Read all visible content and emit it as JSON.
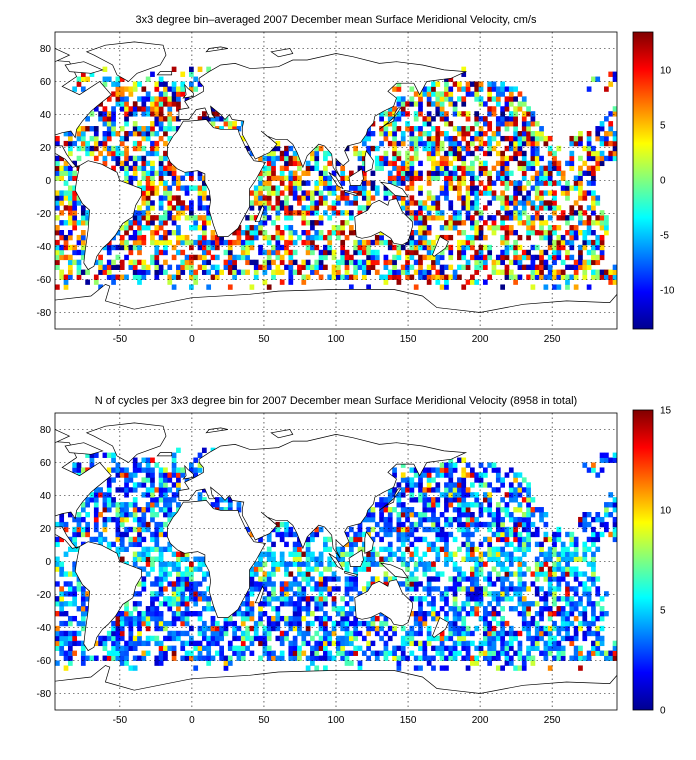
{
  "figure": {
    "panels": [
      {
        "title": "3x3 degree bin–averaged 2007 December mean Surface Meridional Velocity, cm/s",
        "colorbar_ticks": [
          "10",
          "5",
          "0",
          "-5",
          "-10"
        ]
      },
      {
        "title": "N of cycles per 3x3 degree bin for 2007 December mean Surface Meridional Velocity (8958 in total)",
        "colorbar_ticks": [
          "15",
          "10",
          "5",
          "0"
        ]
      }
    ],
    "x_tick_labels": [
      "-50",
      "0",
      "50",
      "100",
      "150",
      "200",
      "250"
    ],
    "y_tick_labels": [
      "80",
      "60",
      "40",
      "20",
      "0",
      "-20",
      "-40",
      "-60",
      "-80"
    ]
  },
  "chart_data": [
    {
      "type": "heatmap",
      "title": "3x3 degree bin–averaged 2007 December mean Surface Meridional Velocity, cm/s",
      "x_ticks": [
        -50,
        0,
        50,
        100,
        150,
        200,
        250
      ],
      "y_ticks": [
        -80,
        -60,
        -40,
        -20,
        0,
        20,
        40,
        60,
        80
      ],
      "xlim": [
        -95,
        295
      ],
      "ylim": [
        -90,
        90
      ],
      "bin_size_deg": 3,
      "colorbar": {
        "colormap": "jet",
        "range": [
          -13.5,
          13.5
        ],
        "ticks": [
          -10,
          -5,
          0,
          5,
          10
        ]
      },
      "grid": true
    },
    {
      "type": "heatmap",
      "title": "N of cycles per 3x3 degree bin for 2007 December mean Surface Meridional Velocity (8958 in total)",
      "total_count": 8958,
      "x_ticks": [
        -50,
        0,
        50,
        100,
        150,
        200,
        250
      ],
      "y_ticks": [
        -80,
        -60,
        -40,
        -20,
        0,
        20,
        40,
        60,
        80
      ],
      "xlim": [
        -95,
        295
      ],
      "ylim": [
        -90,
        90
      ],
      "bin_size_deg": 3,
      "colorbar": {
        "colormap": "jet",
        "range": [
          0,
          15
        ],
        "ticks": [
          0,
          5,
          10,
          15
        ]
      },
      "grid": true
    }
  ]
}
